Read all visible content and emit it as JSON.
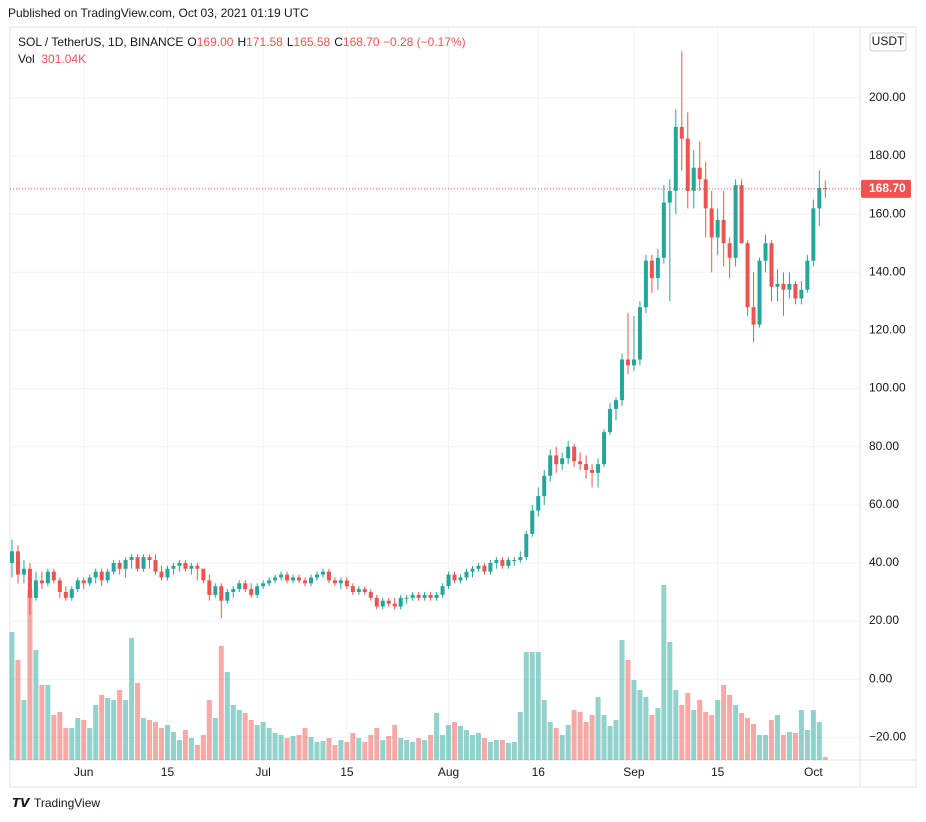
{
  "published": "Published on TradingView.com, Oct 03, 2021 01:19 UTC",
  "footer": "TradingView",
  "currency_button": "USDT",
  "legend": {
    "symbol": "SOL / TetherUS, 1D, BINANCE",
    "items": [
      {
        "label": "O",
        "value": "169.00"
      },
      {
        "label": "H",
        "value": "171.58"
      },
      {
        "label": "L",
        "value": "165.58"
      },
      {
        "label": "C",
        "value": "168.70"
      }
    ],
    "change": "−0.28 (−0.17%)",
    "volume_label": "Vol",
    "volume_value": "301.04K"
  },
  "chart_data": {
    "type": "candlestick",
    "up_color": "#26a69a",
    "down_color": "#ef5350",
    "xlim": [
      -0.33,
      141.8
    ],
    "xticks": [
      {
        "value": 12,
        "label": "Jun"
      },
      {
        "value": 26,
        "label": "15"
      },
      {
        "value": 42,
        "label": "Jul"
      },
      {
        "value": 56,
        "label": "15"
      },
      {
        "value": 73,
        "label": "Aug"
      },
      {
        "value": 88,
        "label": "16"
      },
      {
        "value": 104,
        "label": "Sep"
      },
      {
        "value": 118,
        "label": "15"
      },
      {
        "value": 134,
        "label": "Oct"
      }
    ],
    "ylim": [
      -27.8,
      224.4
    ],
    "yticks": [
      {
        "value": -20,
        "label": "−20.00"
      },
      {
        "value": 0,
        "label": "0.00"
      },
      {
        "value": 20,
        "label": "20.00"
      },
      {
        "value": 40,
        "label": "40.00"
      },
      {
        "value": 60,
        "label": "60.00"
      },
      {
        "value": 80,
        "label": "80.00"
      },
      {
        "value": 100,
        "label": "100.00"
      },
      {
        "value": 120,
        "label": "120.00"
      },
      {
        "value": 140,
        "label": "140.00"
      },
      {
        "value": 160,
        "label": "160.00"
      },
      {
        "value": 180,
        "label": "180.00"
      },
      {
        "value": 200,
        "label": "200.00"
      }
    ],
    "grid": true,
    "last_price": {
      "value": 168.7,
      "label": "168.70"
    },
    "volume_lim": [
      0,
      18000
    ],
    "ohlc": [
      [
        40,
        48,
        35,
        44
      ],
      [
        44,
        46,
        33,
        36
      ],
      [
        36,
        41,
        33,
        38
      ],
      [
        38,
        40,
        22,
        28
      ],
      [
        28,
        37,
        27,
        34
      ],
      [
        34,
        37,
        31,
        33
      ],
      [
        33,
        38,
        32,
        37
      ],
      [
        37,
        38,
        33,
        34
      ],
      [
        34,
        35,
        28,
        30
      ],
      [
        30,
        32,
        27,
        28
      ],
      [
        28,
        32,
        27,
        31
      ],
      [
        31,
        35,
        30,
        34
      ],
      [
        34,
        35,
        31,
        33
      ],
      [
        33,
        36,
        32,
        35
      ],
      [
        35,
        38,
        33,
        37
      ],
      [
        37,
        38,
        32,
        34
      ],
      [
        34,
        38,
        33,
        37
      ],
      [
        37,
        41,
        36,
        40
      ],
      [
        40,
        41,
        36,
        38
      ],
      [
        38,
        42,
        35,
        41
      ],
      [
        41,
        43,
        38,
        42
      ],
      [
        42,
        43,
        37,
        38
      ],
      [
        38,
        43,
        37,
        42
      ],
      [
        42,
        43,
        38,
        41
      ],
      [
        41,
        43,
        36,
        37
      ],
      [
        37,
        39,
        34,
        35
      ],
      [
        35,
        39,
        34,
        38
      ],
      [
        38,
        40,
        36,
        39
      ],
      [
        39,
        41,
        37,
        40
      ],
      [
        40,
        41,
        37,
        38
      ],
      [
        38,
        40,
        36,
        39
      ],
      [
        39,
        40,
        34,
        38
      ],
      [
        38,
        38,
        33,
        34
      ],
      [
        34,
        36,
        27,
        29
      ],
      [
        29,
        33,
        28,
        32
      ],
      [
        32,
        33,
        21,
        27
      ],
      [
        27,
        31,
        26,
        30
      ],
      [
        30,
        32,
        28,
        31
      ],
      [
        31,
        34,
        30,
        33
      ],
      [
        33,
        34,
        30,
        31
      ],
      [
        31,
        33,
        28,
        29
      ],
      [
        29,
        33,
        28,
        32
      ],
      [
        32,
        34,
        31,
        33
      ],
      [
        33,
        35,
        32,
        34
      ],
      [
        34,
        36,
        33,
        35
      ],
      [
        35,
        37,
        34,
        36
      ],
      [
        36,
        37,
        33,
        34
      ],
      [
        34,
        36,
        33,
        35
      ],
      [
        35,
        36,
        33,
        34
      ],
      [
        34,
        35,
        32,
        33
      ],
      [
        33,
        36,
        32,
        35
      ],
      [
        35,
        37,
        34,
        36
      ],
      [
        36,
        38,
        35,
        37
      ],
      [
        37,
        38,
        33,
        34
      ],
      [
        34,
        35,
        32,
        33
      ],
      [
        33,
        35,
        31,
        34
      ],
      [
        34,
        35,
        31,
        32
      ],
      [
        32,
        33,
        29,
        30
      ],
      [
        30,
        32,
        29,
        31
      ],
      [
        31,
        32,
        29,
        30
      ],
      [
        30,
        31,
        27,
        28
      ],
      [
        28,
        29,
        24,
        25
      ],
      [
        25,
        28,
        24,
        27
      ],
      [
        27,
        28,
        25,
        26
      ],
      [
        26,
        28,
        24,
        25
      ],
      [
        25,
        29,
        24,
        28
      ],
      [
        28,
        29,
        26,
        28
      ],
      [
        28,
        30,
        27,
        29
      ],
      [
        29,
        30,
        27,
        28
      ],
      [
        28,
        30,
        27,
        29
      ],
      [
        29,
        30,
        27,
        28
      ],
      [
        28,
        30,
        27,
        29
      ],
      [
        29,
        33,
        28,
        32
      ],
      [
        32,
        37,
        31,
        36
      ],
      [
        36,
        37,
        33,
        34
      ],
      [
        34,
        36,
        33,
        35
      ],
      [
        35,
        38,
        34,
        37
      ],
      [
        37,
        39,
        35,
        38
      ],
      [
        38,
        40,
        37,
        39
      ],
      [
        39,
        40,
        36,
        37
      ],
      [
        37,
        41,
        36,
        40
      ],
      [
        40,
        42,
        38,
        41
      ],
      [
        41,
        42,
        38,
        39
      ],
      [
        39,
        42,
        38,
        41
      ],
      [
        41,
        42,
        39,
        41
      ],
      [
        41,
        44,
        40,
        42
      ],
      [
        42,
        51,
        41,
        50
      ],
      [
        50,
        60,
        49,
        58
      ],
      [
        58,
        66,
        56,
        63
      ],
      [
        63,
        72,
        60,
        70
      ],
      [
        70,
        79,
        68,
        77
      ],
      [
        77,
        80,
        71,
        74
      ],
      [
        74,
        78,
        72,
        76
      ],
      [
        76,
        82,
        74,
        80
      ],
      [
        80,
        81,
        73,
        75
      ],
      [
        75,
        78,
        72,
        74
      ],
      [
        74,
        77,
        69,
        72
      ],
      [
        72,
        74,
        66,
        71
      ],
      [
        71,
        76,
        66,
        74
      ],
      [
        74,
        86,
        73,
        85
      ],
      [
        85,
        95,
        84,
        93
      ],
      [
        93,
        97,
        89,
        96
      ],
      [
        96,
        112,
        94,
        110
      ],
      [
        110,
        126,
        105,
        108
      ],
      [
        108,
        125,
        106,
        110
      ],
      [
        110,
        130,
        108,
        128
      ],
      [
        128,
        146,
        126,
        144
      ],
      [
        144,
        146,
        133,
        138
      ],
      [
        138,
        148,
        134,
        145
      ],
      [
        145,
        170,
        143,
        164
      ],
      [
        164,
        172,
        130,
        168
      ],
      [
        168,
        196,
        160,
        190
      ],
      [
        190,
        216,
        175,
        186
      ],
      [
        186,
        195,
        162,
        168
      ],
      [
        168,
        182,
        162,
        176
      ],
      [
        176,
        185,
        168,
        172
      ],
      [
        172,
        178,
        152,
        162
      ],
      [
        162,
        168,
        140,
        152
      ],
      [
        152,
        162,
        146,
        158
      ],
      [
        158,
        168,
        142,
        150
      ],
      [
        150,
        152,
        138,
        145
      ],
      [
        145,
        172,
        142,
        170
      ],
      [
        170,
        172,
        150,
        150
      ],
      [
        150,
        151,
        125,
        128
      ],
      [
        128,
        140,
        116,
        122
      ],
      [
        122,
        145,
        121,
        144
      ],
      [
        144,
        153,
        140,
        150
      ],
      [
        150,
        151,
        130,
        135
      ],
      [
        135,
        141,
        130,
        136
      ],
      [
        136,
        140,
        125,
        134
      ],
      [
        134,
        140,
        131,
        136
      ],
      [
        136,
        137,
        129,
        131
      ],
      [
        131,
        137,
        129,
        134
      ],
      [
        134,
        146,
        133,
        144
      ],
      [
        144,
        165,
        142,
        162
      ],
      [
        162,
        175,
        156,
        169
      ],
      [
        169,
        171.58,
        165.58,
        168.7
      ]
    ],
    "volume": [
      12800,
      10000,
      6000,
      17000,
      11000,
      7500,
      7500,
      4500,
      4800,
      3200,
      3200,
      4200,
      4000,
      3200,
      5500,
      6500,
      6200,
      6000,
      7000,
      6000,
      12200,
      7700,
      4200,
      4000,
      3800,
      3200,
      3500,
      2800,
      2000,
      3000,
      2200,
      1500,
      2500,
      6000,
      4200,
      11400,
      8800,
      5500,
      5000,
      4700,
      4000,
      3500,
      3800,
      3200,
      2700,
      2500,
      2200,
      2400,
      2500,
      3200,
      2300,
      1800,
      1900,
      2200,
      1500,
      2000,
      1800,
      2700,
      2200,
      1800,
      2500,
      3200,
      2000,
      2400,
      3500,
      2200,
      2000,
      1800,
      2200,
      2000,
      2500,
      4700,
      2500,
      3500,
      3800,
      3400,
      3000,
      2500,
      2700,
      2200,
      1800,
      2000,
      2000,
      1700,
      1800,
      4800,
      10800,
      10800,
      10800,
      6000,
      3800,
      3200,
      2500,
      3500,
      5000,
      4800,
      3800,
      4500,
      6300,
      4500,
      3400,
      4000,
      12000,
      10000,
      8000,
      7000,
      6300,
      4500,
      5200,
      17500,
      11800,
      7000,
      5500,
      6700,
      5000,
      6000,
      4800,
      4500,
      6000,
      7500,
      6500,
      5500,
      4700,
      4200,
      3600,
      2500,
      2500,
      4000,
      4500,
      2500,
      2800,
      2700,
      5000,
      3000,
      5000,
      3800,
      301.04
    ]
  }
}
